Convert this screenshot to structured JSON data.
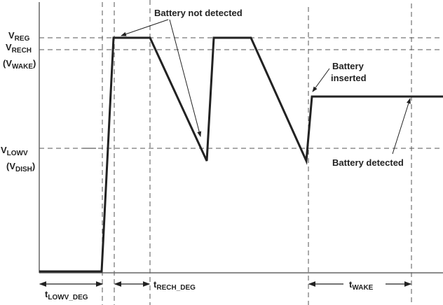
{
  "y_labels": {
    "vreg": {
      "main": "V",
      "sub": "REG"
    },
    "vrech": {
      "main": "V",
      "sub": "RECH"
    },
    "vwake": {
      "open": "(",
      "main": "V",
      "sub": "WAKE",
      "close": ")"
    },
    "vlowv": {
      "main": "V",
      "sub": "LOWV"
    },
    "vdish": {
      "open": "(",
      "main": "V",
      "sub": "DISH",
      "close": ")"
    }
  },
  "annotations": {
    "battery_not_detected": "Battery not detected",
    "battery_inserted_line1": "Battery",
    "battery_inserted_line2": "inserted",
    "battery_detected": "Battery detected"
  },
  "time_labels": {
    "tlowv_deg": {
      "main": "t",
      "sub": "LOWV_DEG"
    },
    "trech_deg": {
      "main": "t",
      "sub": "RECH_DEG"
    },
    "twake": {
      "main": "t",
      "sub": "WAKE"
    }
  },
  "colors": {
    "waveform": "#222222",
    "dashed": "#555555"
  }
}
